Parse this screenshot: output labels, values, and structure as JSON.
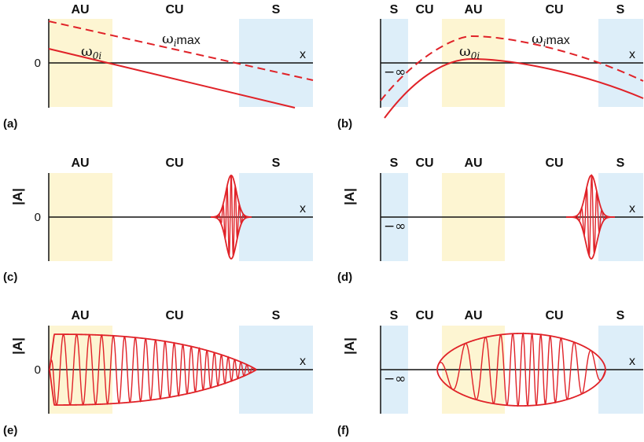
{
  "colors": {
    "absolute_unstable_fill": "#fdf5d2",
    "stable_fill": "#ddeef9",
    "curve": "#e02228",
    "axis": "#111111"
  },
  "panels": {
    "a": {
      "tag": "(a)",
      "regions": [
        "AU",
        "CU",
        "S"
      ],
      "zero": "0",
      "x_label": "x",
      "omega0_main": "ω",
      "omega0_sub": "0i",
      "omegamax_main": "ω",
      "omegamax_sub": "i",
      "omegamax_suffix": "max"
    },
    "b": {
      "tag": "(b)",
      "regions": [
        "S",
        "CU",
        "AU",
        "CU",
        "S"
      ],
      "x_label": "x",
      "neg_inf": "−∞",
      "omega0_main": "ω",
      "omega0_sub": "0i",
      "omegamax_main": "ω",
      "omegamax_sub": "i",
      "omegamax_suffix": "max"
    },
    "c": {
      "tag": "(c)",
      "regions": [
        "AU",
        "CU",
        "S"
      ],
      "zero": "0",
      "x_label": "x",
      "y_title": "|A|"
    },
    "d": {
      "tag": "(d)",
      "regions": [
        "S",
        "CU",
        "AU",
        "CU",
        "S"
      ],
      "x_label": "x",
      "y_title": "|A|",
      "neg_inf": "−∞"
    },
    "e": {
      "tag": "(e)",
      "regions": [
        "AU",
        "CU",
        "S"
      ],
      "zero": "0",
      "x_label": "x",
      "y_title": "|A|"
    },
    "f": {
      "tag": "(f)",
      "regions": [
        "S",
        "CU",
        "AU",
        "CU",
        "S"
      ],
      "x_label": "x",
      "y_title": "|A|",
      "neg_inf": "−∞"
    }
  }
}
